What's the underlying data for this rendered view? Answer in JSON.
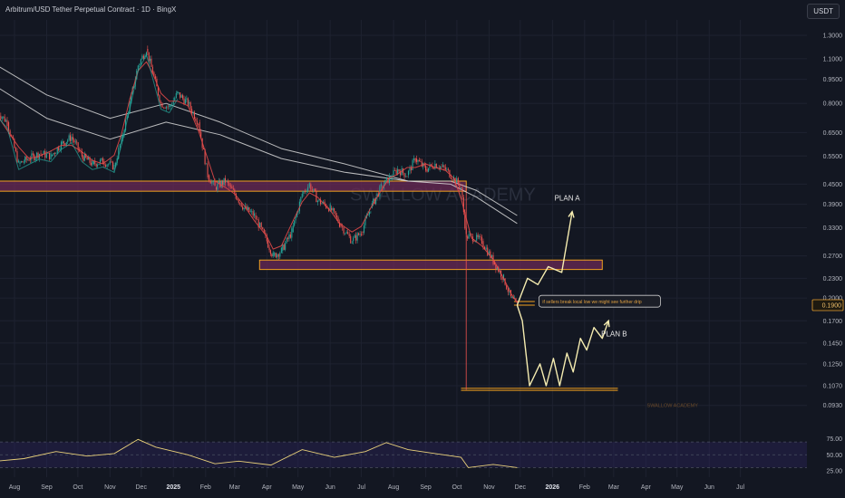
{
  "header": {
    "title": "Arbitrum/USD Tether Perpetual Contract · 1D · BingX",
    "currency": "USDT"
  },
  "colors": {
    "background": "#131722",
    "zone_fill": "#6b2a55",
    "zone_border": "#f0a020",
    "price_line": "#ef5350",
    "ma_fast": "#e04848",
    "ma_green": "#26a69a",
    "ma_slow": "#d8d8d8",
    "projection": "#f5ecb0",
    "rsi": "#e8d07a",
    "rsi_band": "#2a2458",
    "candle_up": "#26a69a",
    "candle_down": "#ef5350"
  },
  "chart_data": [
    {
      "type": "line",
      "title": "Arbitrum/USD Tether Perpetual Contract · 1D · BingX",
      "y_scale": "log",
      "y_ticks": [
        "1.3000",
        "1.1000",
        "0.9500",
        "0.8000",
        "0.6500",
        "0.5500",
        "0.4500",
        "0.3900",
        "0.3300",
        "0.2700",
        "0.2300",
        "0.2000",
        "0.1700",
        "0.1450",
        "0.1250",
        "0.1070",
        "0.0930"
      ],
      "x_ticks": [
        "Aug",
        "Sep",
        "Oct",
        "Nov",
        "Dec",
        "2025",
        "Feb",
        "Mar",
        "Apr",
        "May",
        "Jun",
        "Jul",
        "Aug",
        "Sep",
        "Oct",
        "Nov",
        "Dec",
        "2026",
        "Feb",
        "Mar",
        "Apr",
        "May",
        "Jun",
        "Jul"
      ],
      "x_tick_bold": [
        "2025",
        "2026"
      ],
      "current_price": "0.1900",
      "series": [
        {
          "kind": "price",
          "x": [
            "2024-07-15",
            "2024-07-25",
            "2024-08-05",
            "2024-08-15",
            "2024-08-25",
            "2024-09-05",
            "2024-09-15",
            "2024-09-25",
            "2024-10-05",
            "2024-10-15",
            "2024-10-25",
            "2024-11-05",
            "2024-11-12",
            "2024-11-20",
            "2024-11-28",
            "2024-12-06",
            "2024-12-12",
            "2024-12-20",
            "2024-12-28",
            "2025-01-05",
            "2025-01-15",
            "2025-01-25",
            "2025-02-03",
            "2025-02-10",
            "2025-02-20",
            "2025-03-01",
            "2025-03-10",
            "2025-03-20",
            "2025-04-01",
            "2025-04-07",
            "2025-04-15",
            "2025-04-25",
            "2025-05-05",
            "2025-05-12",
            "2025-05-20",
            "2025-06-01",
            "2025-06-10",
            "2025-06-22",
            "2025-07-01",
            "2025-07-10",
            "2025-07-20",
            "2025-07-28",
            "2025-08-05",
            "2025-08-14",
            "2025-08-22",
            "2025-09-01",
            "2025-09-10",
            "2025-09-20",
            "2025-09-28",
            "2025-10-05",
            "2025-10-10",
            "2025-10-15",
            "2025-10-25",
            "2025-11-05",
            "2025-11-15",
            "2025-11-22",
            "2025-11-28"
          ],
          "y": [
            0.76,
            0.7,
            0.52,
            0.54,
            0.56,
            0.55,
            0.6,
            0.63,
            0.55,
            0.52,
            0.53,
            0.51,
            0.62,
            0.8,
            1.05,
            1.18,
            1.0,
            0.8,
            0.78,
            0.86,
            0.8,
            0.7,
            0.48,
            0.44,
            0.46,
            0.42,
            0.38,
            0.36,
            0.3,
            0.27,
            0.28,
            0.32,
            0.42,
            0.45,
            0.4,
            0.38,
            0.34,
            0.3,
            0.32,
            0.38,
            0.44,
            0.47,
            0.5,
            0.48,
            0.54,
            0.5,
            0.52,
            0.5,
            0.47,
            0.44,
            0.31,
            0.31,
            0.3,
            0.26,
            0.23,
            0.2,
            0.19
          ]
        },
        {
          "kind": "moving_average_slow_1",
          "x": [
            "2024-07-15",
            "2024-09-01",
            "2024-11-01",
            "2024-12-25",
            "2025-02-15",
            "2025-04-15",
            "2025-06-15",
            "2025-08-15",
            "2025-09-25",
            "2025-10-20",
            "2025-11-28"
          ],
          "y": [
            1.05,
            0.85,
            0.72,
            0.8,
            0.7,
            0.58,
            0.52,
            0.46,
            0.46,
            0.43,
            0.36
          ]
        },
        {
          "kind": "moving_average_slow_2",
          "x": [
            "2024-07-15",
            "2024-09-01",
            "2024-11-01",
            "2024-12-25",
            "2025-02-15",
            "2025-04-15",
            "2025-06-15",
            "2025-08-15",
            "2025-09-25",
            "2025-10-20",
            "2025-11-28"
          ],
          "y": [
            0.9,
            0.72,
            0.62,
            0.7,
            0.64,
            0.54,
            0.49,
            0.46,
            0.45,
            0.41,
            0.34
          ]
        },
        {
          "kind": "projection",
          "x": [
            "2025-11-28",
            "2025-12-03",
            "2025-12-10",
            "2025-12-20",
            "2025-12-26",
            "2026-01-02",
            "2026-01-08",
            "2026-01-15",
            "2026-01-21",
            "2026-01-28",
            "2026-02-03",
            "2026-02-10",
            "2026-02-18",
            "2026-02-24"
          ],
          "y": [
            0.19,
            0.17,
            0.107,
            0.125,
            0.107,
            0.13,
            0.107,
            0.135,
            0.118,
            0.15,
            0.138,
            0.162,
            0.15,
            0.17
          ]
        },
        {
          "kind": "projection",
          "x": [
            "2025-11-28",
            "2025-12-08",
            "2025-12-18",
            "2025-12-28",
            "2026-01-10",
            "2026-01-20"
          ],
          "y": [
            0.19,
            0.23,
            0.22,
            0.25,
            0.24,
            0.37
          ]
        }
      ],
      "zones": [
        {
          "x_start": "2024-07-05",
          "x_end": "2025-10-10",
          "y_low": 0.428,
          "y_high": 0.46
        },
        {
          "x_start": "2025-03-25",
          "x_end": "2026-02-18",
          "y_low": 0.245,
          "y_high": 0.262
        }
      ],
      "levels": [
        {
          "x_start": "2025-11-25",
          "x_end": "2025-12-15",
          "y": 0.195
        },
        {
          "x_start": "2025-11-25",
          "x_end": "2025-12-15",
          "y": 0.19
        },
        {
          "x_start": "2025-10-05",
          "x_end": "2026-03-05",
          "y": 0.105
        },
        {
          "x_start": "2025-10-05",
          "x_end": "2026-03-05",
          "y": 0.1035
        }
      ],
      "annotations": [
        {
          "label": "PLAN A",
          "x": "2026-01-03",
          "y": 0.4
        },
        {
          "label": "PLAN B",
          "x": "2026-02-17",
          "y": 0.152
        },
        {
          "label": "if sellers break local low we might see further drip",
          "x": "2025-12-28",
          "y": 0.196
        },
        {
          "label": "SWALLOW ACADEMY",
          "x": "2026-04-02",
          "y": 0.092
        }
      ],
      "watermark": "SWALLOW ACADEMY"
    },
    {
      "type": "line",
      "y_ticks": [
        "75.00",
        "50.00",
        "25.00"
      ],
      "ylim": [
        15,
        90
      ],
      "band": [
        30,
        70
      ],
      "series": [
        {
          "kind": "rsi",
          "x": [
            "2024-07-15",
            "2024-08-10",
            "2024-09-10",
            "2024-10-10",
            "2024-11-05",
            "2024-11-28",
            "2024-12-15",
            "2025-01-15",
            "2025-02-10",
            "2025-03-05",
            "2025-04-05",
            "2025-05-05",
            "2025-06-05",
            "2025-07-05",
            "2025-07-25",
            "2025-08-15",
            "2025-09-10",
            "2025-10-05",
            "2025-10-12",
            "2025-11-05",
            "2025-11-28"
          ],
          "y": [
            40,
            44,
            55,
            48,
            52,
            74,
            62,
            50,
            36,
            40,
            34,
            58,
            46,
            55,
            69,
            58,
            52,
            46,
            30,
            35,
            30
          ]
        }
      ]
    }
  ]
}
